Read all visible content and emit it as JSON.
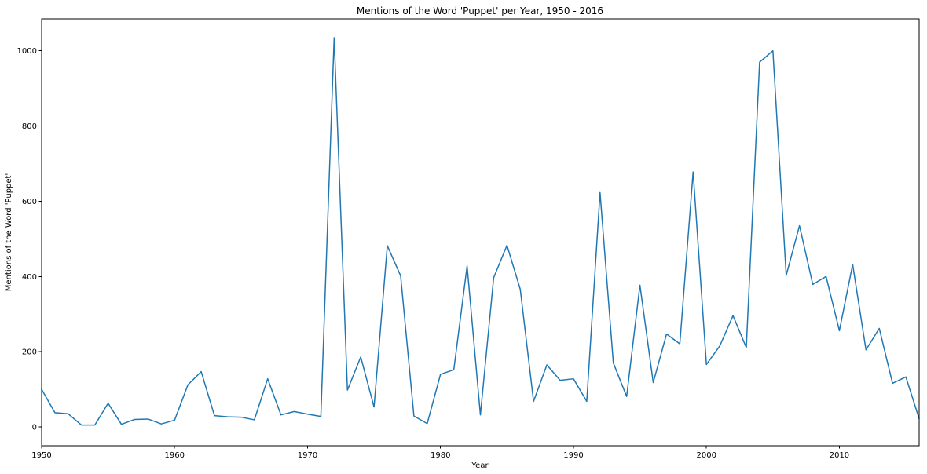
{
  "chart_data": {
    "type": "line",
    "title": "Mentions of the Word 'Puppet' per Year, 1950 - 2016",
    "xlabel": "Year",
    "ylabel": "Mentions of the Word 'Puppet'",
    "xlim": [
      1950,
      2016
    ],
    "ylim": [
      -50,
      1085
    ],
    "xticks": [
      1950,
      1960,
      1970,
      1980,
      1990,
      2000,
      2010
    ],
    "yticks": [
      0,
      200,
      400,
      600,
      800,
      1000
    ],
    "grid": false,
    "legend": "none",
    "x": [
      1950,
      1951,
      1952,
      1953,
      1954,
      1955,
      1956,
      1957,
      1958,
      1959,
      1960,
      1961,
      1962,
      1963,
      1964,
      1965,
      1966,
      1967,
      1968,
      1969,
      1970,
      1971,
      1972,
      1973,
      1974,
      1975,
      1976,
      1977,
      1978,
      1979,
      1980,
      1981,
      1982,
      1983,
      1984,
      1985,
      1986,
      1987,
      1988,
      1989,
      1990,
      1991,
      1992,
      1993,
      1994,
      1995,
      1996,
      1997,
      1998,
      1999,
      2000,
      2001,
      2002,
      2003,
      2004,
      2005,
      2006,
      2007,
      2008,
      2009,
      2010,
      2011,
      2012,
      2013,
      2014,
      2015,
      2016
    ],
    "series": [
      {
        "color": "#1f77b4",
        "values": [
          100,
          38,
          35,
          5,
          5,
          63,
          7,
          20,
          21,
          8,
          18,
          112,
          147,
          30,
          27,
          26,
          19,
          128,
          32,
          41,
          34,
          28,
          1035,
          98,
          186,
          53,
          482,
          402,
          29,
          9,
          140,
          152,
          428,
          32,
          397,
          483,
          366,
          68,
          165,
          124,
          128,
          68,
          623,
          170,
          81,
          377,
          118,
          247,
          221,
          678,
          166,
          215,
          296,
          211,
          970,
          1000,
          403,
          535,
          379,
          400,
          256,
          432,
          205,
          262,
          116,
          133,
          22
        ]
      }
    ]
  }
}
